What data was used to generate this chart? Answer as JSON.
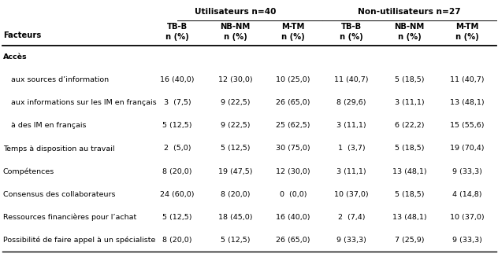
{
  "title_left": "Utilisateurs n=40",
  "title_right": "Non-utilisateurs n=27",
  "row_label_col": "Facteurs",
  "col_headers_line1": [
    "TB-B",
    "NB-NM",
    "M-TM",
    "TB-B",
    "NB-NM",
    "M-TM"
  ],
  "col_headers_line2": [
    "n (%)",
    "n (%)",
    "n (%)",
    "n (%)",
    "n (%)",
    "n (%)"
  ],
  "rows": [
    {
      "label": "Accès",
      "bold": true,
      "indent": false,
      "values": [
        "",
        "",
        "",
        "",
        "",
        ""
      ]
    },
    {
      "label": "aux sources d’information",
      "bold": false,
      "indent": true,
      "values": [
        "16 (40,0)",
        "12 (30,0)",
        "10 (25,0)",
        "11 (40,7)",
        "5 (18,5)",
        "11 (40,7)"
      ]
    },
    {
      "label": "aux informations sur les IM en français",
      "bold": false,
      "indent": true,
      "values": [
        "3  (7,5)",
        "9 (22,5)",
        "26 (65,0)",
        "8 (29,6)",
        "3 (11,1)",
        "13 (48,1)"
      ]
    },
    {
      "label": "à des IM en français",
      "bold": false,
      "indent": true,
      "values": [
        "5 (12,5)",
        "9 (22,5)",
        "25 (62,5)",
        "3 (11,1)",
        "6 (22,2)",
        "15 (55,6)"
      ]
    },
    {
      "label": "Temps à disposition au travail",
      "bold": false,
      "indent": false,
      "values": [
        "2  (5,0)",
        "5 (12,5)",
        "30 (75,0)",
        "1  (3,7)",
        "5 (18,5)",
        "19 (70,4)"
      ]
    },
    {
      "label": "Compétences",
      "bold": false,
      "indent": false,
      "values": [
        "8 (20,0)",
        "19 (47,5)",
        "12 (30,0)",
        "3 (11,1)",
        "13 (48,1)",
        "9 (33,3)"
      ]
    },
    {
      "label": "Consensus des collaborateurs",
      "bold": false,
      "indent": false,
      "values": [
        "24 (60,0)",
        "8 (20,0)",
        "0  (0,0)",
        "10 (37,0)",
        "5 (18,5)",
        "4 (14,8)"
      ]
    },
    {
      "label": "Ressources financières pour l’achat",
      "bold": false,
      "indent": false,
      "values": [
        "5 (12,5)",
        "18 (45,0)",
        "16 (40,0)",
        "2  (7,4)",
        "13 (48,1)",
        "10 (37,0)"
      ]
    },
    {
      "label": "Possibilité de faire appel à un spécialiste",
      "bold": false,
      "indent": false,
      "values": [
        "8 (20,0)",
        "5 (12,5)",
        "26 (65,0)",
        "9 (33,3)",
        "7 (25,9)",
        "9 (33,3)"
      ]
    }
  ],
  "bg_color": "#ffffff",
  "text_color": "#000000",
  "line_color": "#000000",
  "font_size": 6.8,
  "header_font_size": 7.2,
  "title_font_size": 7.6,
  "fig_width": 6.32,
  "fig_height": 3.32,
  "dpi": 100
}
